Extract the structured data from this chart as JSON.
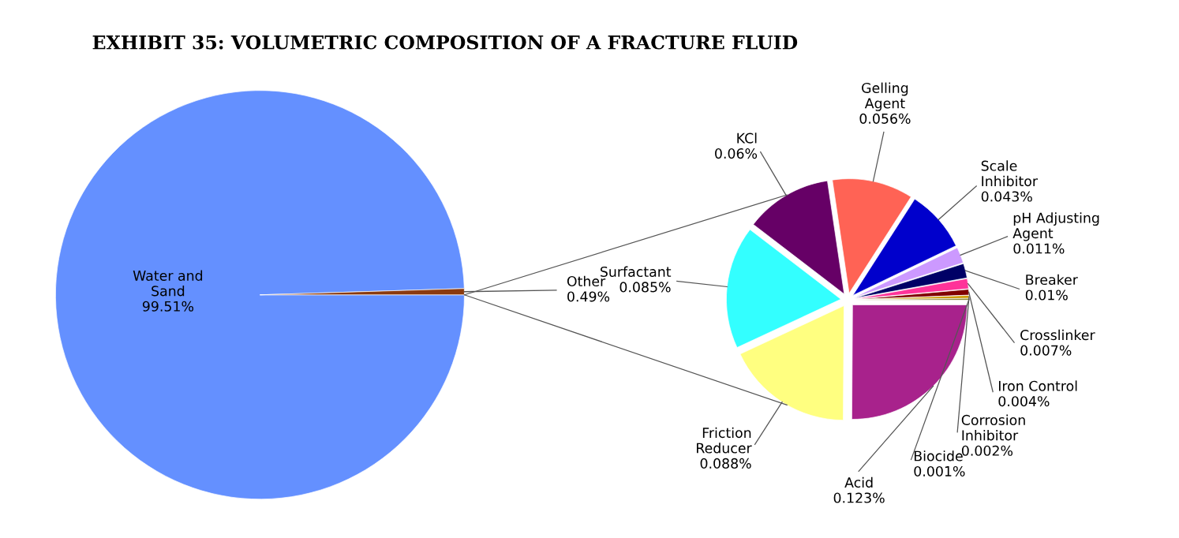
{
  "chart_data": [
    {
      "type": "pie",
      "title": "EXHIBIT 35: VOLUMETRIC COMPOSITION OF A FRACTURE FLUID",
      "categories": [
        "Water and Sand",
        "Other"
      ],
      "values": [
        99.51,
        0.49
      ],
      "colors": [
        "#6490ff",
        "#8b3a0f"
      ],
      "value_labels": [
        "99.51%",
        "0.49%"
      ]
    },
    {
      "type": "pie",
      "categories": [
        "Acid",
        "Friction Reducer",
        "Surfactant",
        "KCl",
        "Gelling Agent",
        "Scale Inhibitor",
        "pH Adjusting Agent",
        "Breaker",
        "Crosslinker",
        "Iron Control",
        "Corrosion Inhibitor",
        "Biocide"
      ],
      "values": [
        0.123,
        0.088,
        0.085,
        0.06,
        0.056,
        0.043,
        0.011,
        0.01,
        0.007,
        0.004,
        0.002,
        0.001
      ],
      "colors": [
        "#a8228c",
        "#ffff80",
        "#33ffff",
        "#660066",
        "#ff6355",
        "#0000cc",
        "#cc99ff",
        "#000066",
        "#ff3399",
        "#800000",
        "#cc9900",
        "#666600"
      ],
      "value_labels": [
        "0.123%",
        "0.088%",
        "0.085%",
        "0.06%",
        "0.056%",
        "0.043%",
        "0.011%",
        "0.01%",
        "0.007%",
        "0.004%",
        "0.002%",
        "0.001%"
      ]
    }
  ]
}
